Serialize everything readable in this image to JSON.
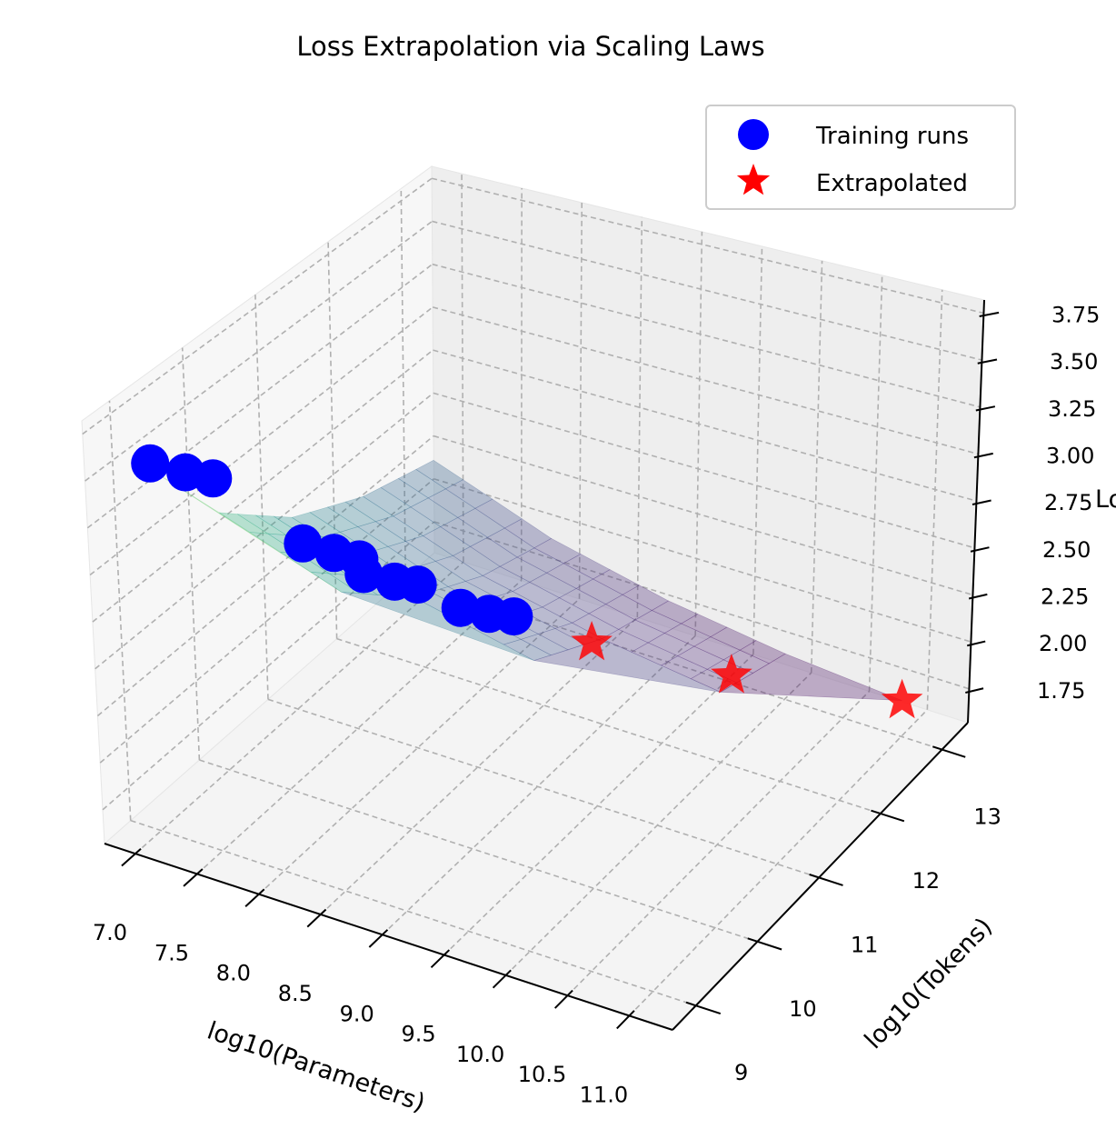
{
  "chart_data": {
    "type": "scatter3d",
    "title": "Loss Extrapolation via Scaling Laws",
    "xlabel": "log10(Parameters)",
    "ylabel": "log10(Tokens)",
    "zlabel": "Loss",
    "xlim": [
      6.75,
      11.35
    ],
    "ylim": [
      8.62,
      13.42
    ],
    "zlim": [
      1.57,
      3.82
    ],
    "xticks": [
      "7.0",
      "7.5",
      "8.0",
      "8.5",
      "9.0",
      "9.5",
      "10.0",
      "10.5",
      "11.0"
    ],
    "yticks": [
      "9",
      "10",
      "11",
      "12",
      "13"
    ],
    "zticks": [
      "1.75",
      "2.00",
      "2.25",
      "2.50",
      "2.75",
      "3.00",
      "3.25",
      "3.50",
      "3.75"
    ],
    "grid": true,
    "legend": {
      "placement": "top-right",
      "entries": [
        {
          "label": "Training runs",
          "marker": "circle",
          "color": "#0000ff"
        },
        {
          "label": "Extrapolated",
          "marker": "star",
          "color": "#ff0000"
        }
      ]
    },
    "series": [
      {
        "name": "Training runs",
        "marker": "circle",
        "color": "#0000ff",
        "x": [
          7.04,
          7.22,
          7.36,
          7.81,
          7.97,
          8.1,
          8.12,
          8.28,
          8.4,
          8.62,
          8.77,
          8.9
        ],
        "y": [
          9.04,
          9.22,
          9.36,
          9.81,
          9.97,
          10.1,
          10.12,
          10.28,
          10.4,
          10.62,
          10.77,
          10.9
        ],
        "z": [
          3.52,
          3.45,
          3.4,
          3.0,
          2.93,
          2.88,
          2.8,
          2.74,
          2.71,
          2.56,
          2.51,
          2.48
        ]
      },
      {
        "name": "Extrapolated",
        "marker": "star",
        "color": "#ff0000",
        "x": [
          9.31,
          10.06,
          11.0
        ],
        "y": [
          11.31,
          12.06,
          13.0
        ],
        "z": [
          2.29,
          2.02,
          1.76
        ]
      }
    ],
    "surface": {
      "colormap": "viridis",
      "x": [
        7,
        8,
        9,
        10,
        11
      ],
      "y": [
        9,
        10,
        11,
        12,
        13
      ],
      "z": [
        [
          3.52,
          null,
          null,
          null,
          null
        ],
        [
          2.965,
          2.719,
          null,
          null,
          null
        ],
        [
          2.629,
          2.383,
          2.235,
          null,
          null
        ],
        [
          2.425,
          2.179,
          2.031,
          1.94,
          null
        ],
        [
          2.301,
          2.055,
          1.907,
          1.816,
          1.761
        ]
      ]
    }
  }
}
